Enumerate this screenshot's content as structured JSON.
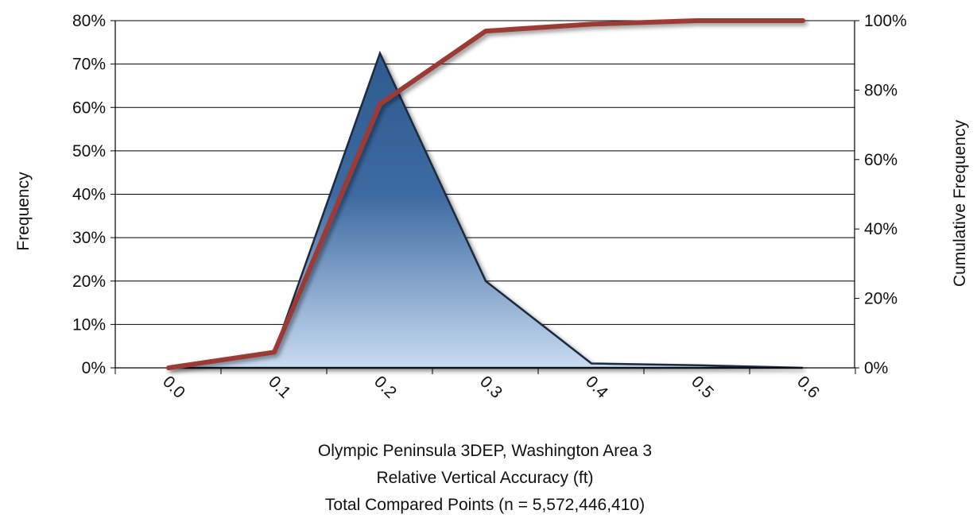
{
  "chart_data": {
    "type": "area",
    "x": [
      0.0,
      0.1,
      0.2,
      0.3,
      0.4,
      0.5,
      0.6
    ],
    "x_tick_labels": [
      "0.0",
      "0.1",
      "0.2",
      "0.3",
      "0.4",
      "0.5",
      "0.6"
    ],
    "series": [
      {
        "axis": "left",
        "type": "area",
        "values": [
          0.0,
          0.035,
          0.725,
          0.2,
          0.01,
          0.006,
          0.0
        ]
      },
      {
        "axis": "right",
        "type": "line",
        "values": [
          0.0,
          0.045,
          0.76,
          0.97,
          0.99,
          1.0,
          1.0
        ]
      }
    ],
    "ylabel": "Frequency",
    "y2label": "Cumulative Frequency",
    "ylim": [
      0,
      0.8
    ],
    "y2lim": [
      0,
      1.0
    ],
    "y_ticks": [
      "0%",
      "10%",
      "20%",
      "30%",
      "40%",
      "50%",
      "60%",
      "70%",
      "80%"
    ],
    "y2_ticks": [
      "0%",
      "20%",
      "40%",
      "60%",
      "80%",
      "100%"
    ],
    "xlabel_lines": [
      "Olympic Peninsula 3DEP, Washington Area 3",
      "Relative Vertical Accuracy (ft)",
      "Total Compared Points (n = 5,572,446,410)"
    ],
    "grid": true,
    "colors": {
      "area_top": "#2f5a8e",
      "area_mid": "#3d6aa2",
      "area_bottom": "#c9dcf1",
      "area_edge": "#1c2b3e",
      "line": "#9b3a36",
      "grid": "#000000"
    }
  }
}
